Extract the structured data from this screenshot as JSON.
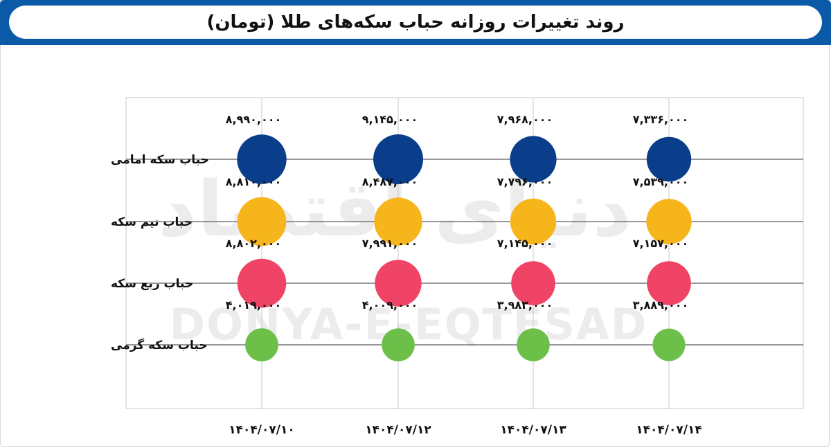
{
  "header": {
    "title": "روند تغییرات روزانه حباب سکه‌های طلا (تومان)"
  },
  "watermark": {
    "text": "DONYA-E-EQTESAD",
    "logo_text": "دنیای اقتصاد"
  },
  "colors": {
    "header_bg": "#0b5aa8",
    "emami": "#0a3d8a",
    "nim": "#f7b51c",
    "rob": "#ef4466",
    "gerami": "#6cc04a",
    "grid": "#c8c8c8"
  },
  "chart_data": {
    "type": "bubble",
    "title": "روند تغییرات روزانه حباب سکه‌های طلا (تومان)",
    "x": [
      "۱۴۰۴/۰۷/۱۰",
      "۱۴۰۴/۰۷/۱۲",
      "۱۴۰۴/۰۷/۱۳",
      "۱۴۰۴/۰۷/۱۴"
    ],
    "series": [
      {
        "name": "حباب سکه امامی",
        "values": [
          8990000,
          9145000,
          7968000,
          7336000
        ],
        "labels": [
          "۸,۹۹۰,۰۰۰",
          "۹,۱۴۵,۰۰۰",
          "۷,۹۶۸,۰۰۰",
          "۷,۳۳۶,۰۰۰"
        ],
        "color": "#0a3d8a"
      },
      {
        "name": "حباب نیم سکه",
        "values": [
          8810000,
          8487000,
          7796000,
          7539000
        ],
        "labels": [
          "۸,۸۱۰,۰۰۰",
          "۸,۴۸۷,۰۰۰",
          "۷,۷۹۶,۰۰۰",
          "۷,۵۳۹,۰۰۰"
        ],
        "color": "#f7b51c"
      },
      {
        "name": "حباب ربع سکه",
        "values": [
          8802000,
          7991000,
          7145000,
          7157000
        ],
        "labels": [
          "۸,۸۰۲,۰۰۰",
          "۷,۹۹۱,۰۰۰",
          "۷,۱۴۵,۰۰۰",
          "۷,۱۵۷,۰۰۰"
        ],
        "color": "#ef4466"
      },
      {
        "name": "حباب سکه گرمی",
        "values": [
          4019000,
          4009000,
          3983000,
          3889000
        ],
        "labels": [
          "۴,۰۱۹,۰۰۰",
          "۴,۰۰۹,۰۰۰",
          "۳,۹۸۳,۰۰۰",
          "۳,۸۸۹,۰۰۰"
        ],
        "color": "#6cc04a"
      }
    ],
    "grid": true,
    "legend": "none"
  }
}
